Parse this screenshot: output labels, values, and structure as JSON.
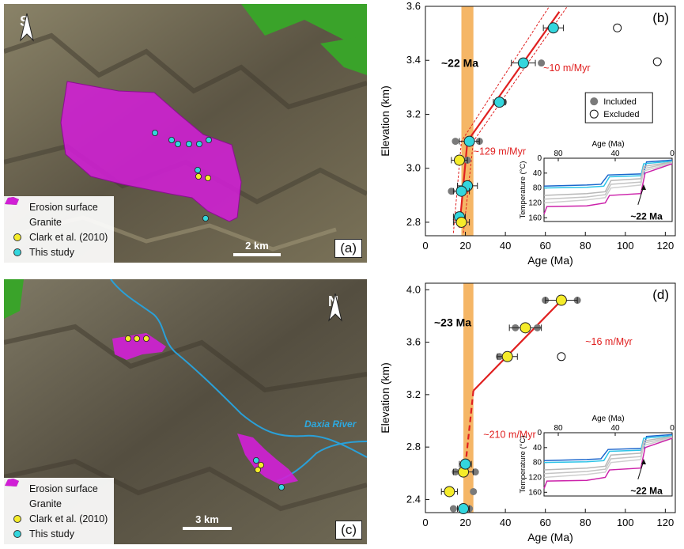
{
  "colors": {
    "granite": "#d11fd6",
    "erosion": "#3fb82a",
    "clark": "#f5ec2a",
    "this_study": "#33d6dd",
    "fit": "#e02020",
    "band": "#f2a440",
    "river": "#2aa0d8",
    "inset_blue": "#1a66cc",
    "inset_cyan": "#2cc4e8",
    "inset_magenta": "#cc22aa"
  },
  "map_a": {
    "panel_label": "(a)",
    "north_label": "S",
    "scale_label": "2 km",
    "legend": [
      {
        "icon": "erosion-surface-swatch",
        "label": "Erosion surface"
      },
      {
        "icon": "granite-swatch",
        "label": "Granite"
      },
      {
        "icon": "yellow-dot",
        "label": "Clark et al. (2010)"
      },
      {
        "icon": "cyan-dot",
        "label": "This study"
      }
    ]
  },
  "map_c": {
    "panel_label": "(c)",
    "north_label": "N",
    "scale_label": "3 km",
    "river_label": "Daxia River",
    "legend": [
      {
        "icon": "erosion-surface-swatch",
        "label": "Erosion surface"
      },
      {
        "icon": "granite-swatch",
        "label": "Granite"
      },
      {
        "icon": "yellow-dot",
        "label": "Clark et al. (2010)"
      },
      {
        "icon": "cyan-dot",
        "label": "This study"
      }
    ]
  },
  "chart_data": [
    {
      "type": "scatter",
      "panel_label": "(b)",
      "xlabel": "Age (Ma)",
      "ylabel": "Elevation (km)",
      "xlim": [
        0,
        125
      ],
      "ylim": [
        2.75,
        3.6
      ],
      "xticks": [
        0,
        20,
        40,
        60,
        80,
        100,
        120
      ],
      "yticks": [
        2.8,
        3.0,
        3.2,
        3.4,
        3.6
      ],
      "band_label": "~22 Ma",
      "band_range": [
        18,
        24
      ],
      "rate_labels": [
        "~10 m/Myr",
        "~129 m/Myr"
      ],
      "legend": [
        "Included",
        "Excluded"
      ],
      "series": [
        {
          "name": "This study",
          "points": [
            {
              "x": 64,
              "y": 3.52,
              "xerr": 5
            },
            {
              "x": 49,
              "y": 3.39,
              "xerr": 6
            },
            {
              "x": 37,
              "y": 3.245,
              "xerr": 3
            },
            {
              "x": 22,
              "y": 3.1,
              "xerr": 5
            },
            {
              "x": 21,
              "y": 2.935,
              "xerr": 5
            },
            {
              "x": 18,
              "y": 2.915,
              "xerr": 4
            },
            {
              "x": 17,
              "y": 2.82,
              "xerr": 3
            }
          ]
        },
        {
          "name": "Clark et al. (2010)",
          "points": [
            {
              "x": 17,
              "y": 3.03,
              "xerr": 4
            },
            {
              "x": 18,
              "y": 2.8,
              "xerr": 4
            }
          ]
        }
      ],
      "included": [
        {
          "x": 58,
          "y": 3.39
        },
        {
          "x": 39,
          "y": 3.245
        },
        {
          "x": 27,
          "y": 3.1
        },
        {
          "x": 15,
          "y": 3.1
        },
        {
          "x": 21,
          "y": 3.03
        },
        {
          "x": 13,
          "y": 2.915
        },
        {
          "x": 22,
          "y": 2.935
        }
      ],
      "excluded": [
        {
          "x": 96,
          "y": 3.52
        },
        {
          "x": 116,
          "y": 3.395
        }
      ],
      "fit_lines": [
        {
          "from": {
            "x": 17,
            "y": 2.78
          },
          "to": {
            "x": 21,
            "y": 3.1
          }
        },
        {
          "from": {
            "x": 21,
            "y": 3.1
          },
          "to": {
            "x": 67,
            "y": 3.58
          }
        }
      ],
      "inset": {
        "xlabel": "Age (Ma)",
        "ylabel": "Temperature (°C)",
        "xticks": [
          80,
          40,
          0
        ],
        "yticks": [
          0,
          40,
          80,
          120,
          160
        ],
        "annotation": "~22 Ma"
      }
    },
    {
      "type": "scatter",
      "panel_label": "(d)",
      "xlabel": "Age (Ma)",
      "ylabel": "Elevation (km)",
      "xlim": [
        0,
        125
      ],
      "ylim": [
        2.3,
        4.05
      ],
      "xticks": [
        0,
        20,
        40,
        60,
        80,
        100,
        120
      ],
      "yticks": [
        2.4,
        2.8,
        3.2,
        3.6,
        4.0
      ],
      "band_label": "~23 Ma",
      "band_range": [
        19,
        24
      ],
      "rate_labels": [
        "~16 m/Myr",
        "~210 m/Myr"
      ],
      "series": [
        {
          "name": "Clark et al. (2010)",
          "points": [
            {
              "x": 68,
              "y": 3.92,
              "xerr": 8
            },
            {
              "x": 50,
              "y": 3.71,
              "xerr": 8
            },
            {
              "x": 41,
              "y": 3.49,
              "xerr": 5
            },
            {
              "x": 19,
              "y": 2.61,
              "xerr": 5
            },
            {
              "x": 12,
              "y": 2.46,
              "xerr": 4
            }
          ]
        },
        {
          "name": "This study",
          "points": [
            {
              "x": 20,
              "y": 2.67,
              "xerr": 3
            },
            {
              "x": 19,
              "y": 2.33,
              "xerr": 3
            }
          ]
        }
      ],
      "included": [
        {
          "x": 76,
          "y": 3.92
        },
        {
          "x": 60,
          "y": 3.92
        },
        {
          "x": 56,
          "y": 3.71
        },
        {
          "x": 45,
          "y": 3.71
        },
        {
          "x": 37,
          "y": 3.49
        },
        {
          "x": 25,
          "y": 2.61
        },
        {
          "x": 15,
          "y": 2.61
        },
        {
          "x": 24,
          "y": 2.46
        },
        {
          "x": 14,
          "y": 2.33
        },
        {
          "x": 22,
          "y": 2.33
        }
      ],
      "excluded": [
        {
          "x": 68,
          "y": 3.49
        }
      ],
      "fit_lines": [
        {
          "from": {
            "x": 24,
            "y": 3.23
          },
          "to": {
            "x": 70,
            "y": 3.95
          }
        }
      ],
      "fit_dashed": [
        {
          "from": {
            "x": 20,
            "y": 2.66
          },
          "to": {
            "x": 24,
            "y": 3.23
          }
        }
      ],
      "inset": {
        "xlabel": "Age (Ma)",
        "ylabel": "Temperature (°C)",
        "xticks": [
          80,
          40,
          0
        ],
        "yticks": [
          0,
          40,
          80,
          120,
          160
        ],
        "annotation": "~22 Ma"
      }
    }
  ]
}
